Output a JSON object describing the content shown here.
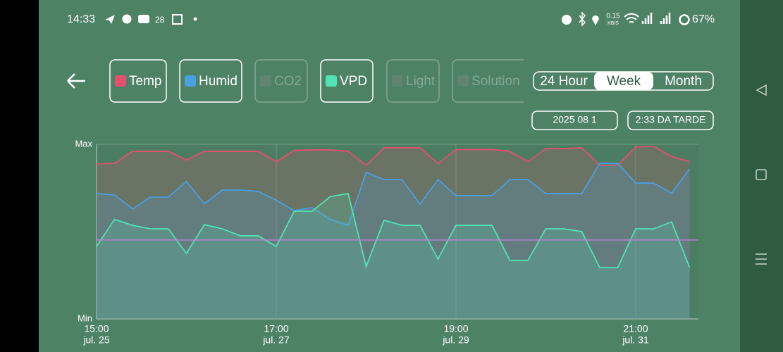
{
  "status_bar": {
    "time": "14:33",
    "temperature": "28",
    "speed_value": "0.15",
    "speed_unit": "KB/S",
    "battery": "67%"
  },
  "range_selector": {
    "options": [
      "24 Hour",
      "Week",
      "Month"
    ],
    "selected": 1
  },
  "date": "2025 08 1",
  "clock": "2:33 DA TARDE",
  "chart_data": {
    "type": "area",
    "categories": [
      "15:00",
      null,
      null,
      null,
      null,
      null,
      null,
      null,
      null,
      null,
      "17:00",
      null,
      null,
      null,
      null,
      null,
      null,
      null,
      null,
      null,
      "19:00",
      null,
      null,
      null,
      null,
      null,
      null,
      null,
      null,
      null,
      "21:00",
      null,
      null,
      null
    ],
    "dates": [
      "jul. 25",
      null,
      null,
      null,
      null,
      null,
      null,
      null,
      null,
      null,
      "jul. 27",
      null,
      null,
      null,
      null,
      null,
      null,
      null,
      null,
      null,
      "jul. 29",
      null,
      null,
      null,
      null,
      null,
      null,
      null,
      null,
      null,
      "jul. 31",
      null,
      null,
      null
    ],
    "ylim": [
      0,
      100
    ],
    "yticks": [
      {
        "value": 100,
        "label": "Max"
      },
      {
        "value": 0,
        "label": "Min"
      }
    ],
    "reference_line": {
      "value": 45.2,
      "color": "#b77fd0"
    },
    "series": [
      {
        "name": "Temp",
        "color": "#e64f6e",
        "active": true,
        "values": [
          88.7,
          89,
          96,
          96,
          96,
          91,
          96,
          96,
          96,
          96,
          90,
          96.5,
          96.8,
          96.8,
          96,
          88,
          98,
          98,
          98,
          89,
          97,
          97,
          97,
          96,
          90,
          97.5,
          97.5,
          98,
          88,
          88,
          98.5,
          98.8,
          93,
          90
        ]
      },
      {
        "name": "Humid",
        "color": "#4b9fe3",
        "active": true,
        "values": [
          71.8,
          71,
          63,
          69.8,
          69.8,
          78.6,
          66,
          73.8,
          73.8,
          73,
          68,
          62,
          63.7,
          57,
          53.6,
          83.9,
          79.8,
          79.8,
          65.7,
          79.8,
          70.6,
          70.6,
          70.6,
          79.8,
          79.8,
          71.8,
          71.8,
          71.8,
          89.1,
          89.1,
          77.8,
          77.8,
          72,
          85.9
        ]
      },
      {
        "name": "CO2",
        "color": "#8c8c8c",
        "active": false
      },
      {
        "name": "VPD",
        "color": "#52e3b3",
        "active": true,
        "values": [
          41.5,
          57,
          53.6,
          51.6,
          51.6,
          37.5,
          54,
          51.6,
          47.6,
          47.6,
          41.5,
          61.7,
          61.7,
          70,
          71.8,
          30,
          56.5,
          53.6,
          53.6,
          34.3,
          53.6,
          53.6,
          53.6,
          33.5,
          33.5,
          51.6,
          51.6,
          50,
          29.4,
          29.4,
          51.6,
          51.6,
          55.6,
          29.4
        ]
      },
      {
        "name": "Light",
        "color": "#8c8c8c",
        "active": false
      },
      {
        "name": "Solution",
        "color": "#8c8c8c",
        "active": false
      }
    ]
  }
}
